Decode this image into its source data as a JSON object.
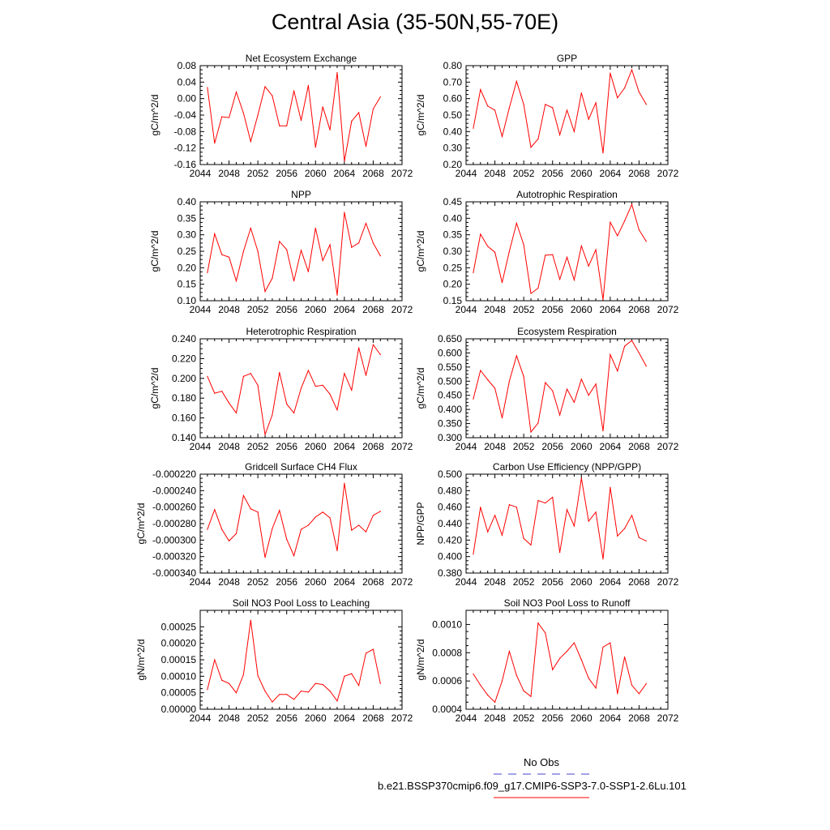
{
  "title": "Central Asia (35-50N,55-70E)",
  "colors": {
    "model": "#ff0000",
    "obs": "#4444cc",
    "axis": "#000000"
  },
  "legend": {
    "obs_label": "No Obs",
    "model_label": "b.e21.BSSP370cmip6.f09_g17.CMIP6-SSP3-7.0-SSP1-2.6Lu.101"
  },
  "chart_data": [
    {
      "type": "line",
      "title": "Net Ecosystem Exchange",
      "ylabel": "gC/m^2/d",
      "xlim": [
        2044,
        2072
      ],
      "ylim": [
        -0.16,
        0.08
      ],
      "xticks": [
        "2044",
        "2048",
        "2052",
        "2056",
        "2060",
        "2064",
        "2068",
        "2072"
      ],
      "yticks": [
        "-0.16",
        "-0.12",
        "-0.08",
        "-0.04",
        "0.00",
        "0.04",
        "0.08"
      ],
      "x": [
        2045,
        2046,
        2047,
        2048,
        2049,
        2050,
        2051,
        2052,
        2053,
        2054,
        2055,
        2056,
        2057,
        2058,
        2059,
        2060,
        2061,
        2062,
        2063,
        2064,
        2065,
        2066,
        2067,
        2068,
        2069
      ],
      "values": [
        0.027,
        -0.108,
        -0.044,
        -0.046,
        0.016,
        -0.035,
        -0.104,
        -0.04,
        0.029,
        0.007,
        -0.066,
        -0.066,
        0.019,
        -0.053,
        0.032,
        -0.118,
        -0.02,
        -0.076,
        0.063,
        -0.152,
        -0.055,
        -0.034,
        -0.116,
        -0.025,
        0.004
      ]
    },
    {
      "type": "line",
      "title": "GPP",
      "ylabel": "gC/m^2/d",
      "xlim": [
        2044,
        2072
      ],
      "ylim": [
        0.2,
        0.8
      ],
      "xticks": [
        "2044",
        "2048",
        "2052",
        "2056",
        "2060",
        "2064",
        "2068",
        "2072"
      ],
      "yticks": [
        "0.20",
        "0.30",
        "0.40",
        "0.50",
        "0.60",
        "0.70",
        "0.80"
      ],
      "x": [
        2045,
        2046,
        2047,
        2048,
        2049,
        2050,
        2051,
        2052,
        2053,
        2054,
        2055,
        2056,
        2057,
        2058,
        2059,
        2060,
        2061,
        2062,
        2063,
        2064,
        2065,
        2066,
        2067,
        2068,
        2069
      ],
      "values": [
        0.42,
        0.655,
        0.555,
        0.53,
        0.37,
        0.545,
        0.705,
        0.565,
        0.305,
        0.355,
        0.565,
        0.545,
        0.38,
        0.53,
        0.4,
        0.635,
        0.475,
        0.575,
        0.27,
        0.755,
        0.605,
        0.665,
        0.775,
        0.64,
        0.565
      ]
    },
    {
      "type": "line",
      "title": "NPP",
      "ylabel": "gC/m^2/d",
      "xlim": [
        2044,
        2072
      ],
      "ylim": [
        0.1,
        0.4
      ],
      "xticks": [
        "2044",
        "2048",
        "2052",
        "2056",
        "2060",
        "2064",
        "2068",
        "2072"
      ],
      "yticks": [
        "0.10",
        "0.15",
        "0.20",
        "0.25",
        "0.30",
        "0.35",
        "0.40"
      ],
      "x": [
        2045,
        2046,
        2047,
        2048,
        2049,
        2050,
        2051,
        2052,
        2053,
        2054,
        2055,
        2056,
        2057,
        2058,
        2059,
        2060,
        2061,
        2062,
        2063,
        2064,
        2065,
        2066,
        2067,
        2068,
        2069
      ],
      "values": [
        0.185,
        0.303,
        0.24,
        0.232,
        0.16,
        0.25,
        0.32,
        0.25,
        0.128,
        0.168,
        0.28,
        0.255,
        0.16,
        0.253,
        0.188,
        0.32,
        0.222,
        0.27,
        0.117,
        0.368,
        0.262,
        0.275,
        0.335,
        0.275,
        0.236
      ]
    },
    {
      "type": "line",
      "title": "Autotrophic Respiration",
      "ylabel": "gC/m^2/d",
      "xlim": [
        2044,
        2072
      ],
      "ylim": [
        0.15,
        0.45
      ],
      "xticks": [
        "2044",
        "2048",
        "2052",
        "2056",
        "2060",
        "2064",
        "2068",
        "2072"
      ],
      "yticks": [
        "0.15",
        "0.20",
        "0.25",
        "0.30",
        "0.35",
        "0.40",
        "0.45"
      ],
      "x": [
        2045,
        2046,
        2047,
        2048,
        2049,
        2050,
        2051,
        2052,
        2053,
        2054,
        2055,
        2056,
        2057,
        2058,
        2059,
        2060,
        2061,
        2062,
        2063,
        2064,
        2065,
        2066,
        2067,
        2068,
        2069
      ],
      "values": [
        0.235,
        0.352,
        0.315,
        0.297,
        0.205,
        0.3,
        0.385,
        0.32,
        0.172,
        0.188,
        0.288,
        0.29,
        0.215,
        0.282,
        0.213,
        0.316,
        0.255,
        0.305,
        0.153,
        0.388,
        0.347,
        0.392,
        0.442,
        0.365,
        0.33
      ]
    },
    {
      "type": "line",
      "title": "Heterotrophic Respiration",
      "ylabel": "gC/m^2/d",
      "xlim": [
        2044,
        2072
      ],
      "ylim": [
        0.14,
        0.24
      ],
      "xticks": [
        "2044",
        "2048",
        "2052",
        "2056",
        "2060",
        "2064",
        "2068",
        "2072"
      ],
      "yticks": [
        "0.140",
        "0.160",
        "0.180",
        "0.200",
        "0.220",
        "0.240"
      ],
      "x": [
        2045,
        2046,
        2047,
        2048,
        2049,
        2050,
        2051,
        2052,
        2053,
        2054,
        2055,
        2056,
        2057,
        2058,
        2059,
        2060,
        2061,
        2062,
        2063,
        2064,
        2065,
        2066,
        2067,
        2068,
        2069
      ],
      "values": [
        0.202,
        0.185,
        0.187,
        0.175,
        0.165,
        0.202,
        0.205,
        0.193,
        0.143,
        0.163,
        0.206,
        0.174,
        0.165,
        0.19,
        0.208,
        0.192,
        0.193,
        0.184,
        0.168,
        0.205,
        0.188,
        0.231,
        0.203,
        0.234,
        0.224
      ]
    },
    {
      "type": "line",
      "title": "Ecosystem Respiration",
      "ylabel": "gC/m^2/d",
      "xlim": [
        2044,
        2072
      ],
      "ylim": [
        0.3,
        0.65
      ],
      "xticks": [
        "2044",
        "2048",
        "2052",
        "2056",
        "2060",
        "2064",
        "2068",
        "2072"
      ],
      "yticks": [
        "0.300",
        "0.350",
        "0.400",
        "0.450",
        "0.500",
        "0.550",
        "0.600",
        "0.650"
      ],
      "x": [
        2045,
        2046,
        2047,
        2048,
        2049,
        2050,
        2051,
        2052,
        2053,
        2054,
        2055,
        2056,
        2057,
        2058,
        2059,
        2060,
        2061,
        2062,
        2063,
        2064,
        2065,
        2066,
        2067,
        2068,
        2069
      ],
      "values": [
        0.437,
        0.538,
        0.505,
        0.475,
        0.37,
        0.5,
        0.59,
        0.517,
        0.32,
        0.352,
        0.495,
        0.466,
        0.38,
        0.472,
        0.425,
        0.507,
        0.45,
        0.49,
        0.324,
        0.594,
        0.536,
        0.624,
        0.644,
        0.6,
        0.553
      ]
    },
    {
      "type": "line",
      "title": "Gridcell Surface CH4 Flux",
      "ylabel": "gC/m^2/d",
      "xlim": [
        2044,
        2072
      ],
      "ylim": [
        -0.00034,
        -0.00022
      ],
      "xticks": [
        "2044",
        "2048",
        "2052",
        "2056",
        "2060",
        "2064",
        "2068",
        "2072"
      ],
      "yticks": [
        "-0.000340",
        "-0.000320",
        "-0.000300",
        "-0.000280",
        "-0.000260",
        "-0.000240",
        "-0.000220"
      ],
      "x": [
        2045,
        2046,
        2047,
        2048,
        2049,
        2050,
        2051,
        2052,
        2053,
        2054,
        2055,
        2056,
        2057,
        2058,
        2059,
        2060,
        2061,
        2062,
        2063,
        2064,
        2065,
        2066,
        2067,
        2068,
        2069
      ],
      "values": [
        -0.000287,
        -0.000263,
        -0.000287,
        -0.000301,
        -0.000292,
        -0.000246,
        -0.000262,
        -0.000266,
        -0.000321,
        -0.000286,
        -0.000264,
        -0.000299,
        -0.000319,
        -0.000287,
        -0.000282,
        -0.000272,
        -0.000266,
        -0.000273,
        -0.000313,
        -0.000231,
        -0.000288,
        -0.000282,
        -0.00029,
        -0.00027,
        -0.000265
      ]
    },
    {
      "type": "line",
      "title": "Carbon Use Efficiency (NPP/GPP)",
      "ylabel": "NPP/GPP",
      "xlim": [
        2044,
        2072
      ],
      "ylim": [
        0.38,
        0.5
      ],
      "xticks": [
        "2044",
        "2048",
        "2052",
        "2056",
        "2060",
        "2064",
        "2068",
        "2072"
      ],
      "yticks": [
        "0.380",
        "0.400",
        "0.420",
        "0.440",
        "0.460",
        "0.480",
        "0.500"
      ],
      "x": [
        2045,
        2046,
        2047,
        2048,
        2049,
        2050,
        2051,
        2052,
        2053,
        2054,
        2055,
        2056,
        2057,
        2058,
        2059,
        2060,
        2061,
        2062,
        2063,
        2064,
        2065,
        2066,
        2067,
        2068,
        2069
      ],
      "values": [
        0.403,
        0.46,
        0.43,
        0.45,
        0.426,
        0.463,
        0.46,
        0.422,
        0.414,
        0.468,
        0.465,
        0.472,
        0.405,
        0.457,
        0.437,
        0.495,
        0.443,
        0.454,
        0.397,
        0.484,
        0.425,
        0.434,
        0.45,
        0.423,
        0.419
      ]
    },
    {
      "type": "line",
      "title": "Soil NO3 Pool Loss to Leaching",
      "ylabel": "gN/m^2/d",
      "xlim": [
        2044,
        2072
      ],
      "ylim": [
        0,
        0.0003
      ],
      "xticks": [
        "2044",
        "2048",
        "2052",
        "2056",
        "2060",
        "2064",
        "2068",
        "2072"
      ],
      "yticks": [
        "0.00000",
        "0.00005",
        "0.00010",
        "0.00015",
        "0.00020",
        "0.00025"
      ],
      "x": [
        2045,
        2046,
        2047,
        2048,
        2049,
        2050,
        2051,
        2052,
        2053,
        2054,
        2055,
        2056,
        2057,
        2058,
        2059,
        2060,
        2061,
        2062,
        2063,
        2064,
        2065,
        2066,
        2067,
        2068,
        2069
      ],
      "values": [
        6e-05,
        0.00015,
        8.8e-05,
        7.8e-05,
        5e-05,
        0.000105,
        0.00027,
        0.000102,
        5.5e-05,
        2.2e-05,
        4.5e-05,
        4.5e-05,
        3e-05,
        5.5e-05,
        5.2e-05,
        7.8e-05,
        7.5e-05,
        5.5e-05,
        2.5e-05,
        0.0001,
        0.000108,
        7.2e-05,
        0.00017,
        0.000182,
        7.8e-05
      ]
    },
    {
      "type": "line",
      "title": "Soil NO3 Pool Loss to Runoff",
      "ylabel": "gN/m^2/d",
      "xlim": [
        2044,
        2072
      ],
      "ylim": [
        0.0004,
        0.0011
      ],
      "xticks": [
        "2044",
        "2048",
        "2052",
        "2056",
        "2060",
        "2064",
        "2068",
        "2072"
      ],
      "yticks": [
        "0.0004",
        "0.0006",
        "0.0008",
        "0.0010"
      ],
      "x": [
        2045,
        2046,
        2047,
        2048,
        2049,
        2050,
        2051,
        2052,
        2053,
        2054,
        2055,
        2056,
        2057,
        2058,
        2059,
        2060,
        2061,
        2062,
        2063,
        2064,
        2065,
        2066,
        2067,
        2068,
        2069
      ],
      "values": [
        0.00065,
        0.00057,
        0.0005,
        0.00045,
        0.0006,
        0.00081,
        0.00064,
        0.00053,
        0.00049,
        0.00101,
        0.00094,
        0.00068,
        0.00076,
        0.00081,
        0.00087,
        0.00075,
        0.00062,
        0.00055,
        0.00084,
        0.00087,
        0.00051,
        0.00077,
        0.00057,
        0.00051,
        0.00058
      ]
    }
  ]
}
